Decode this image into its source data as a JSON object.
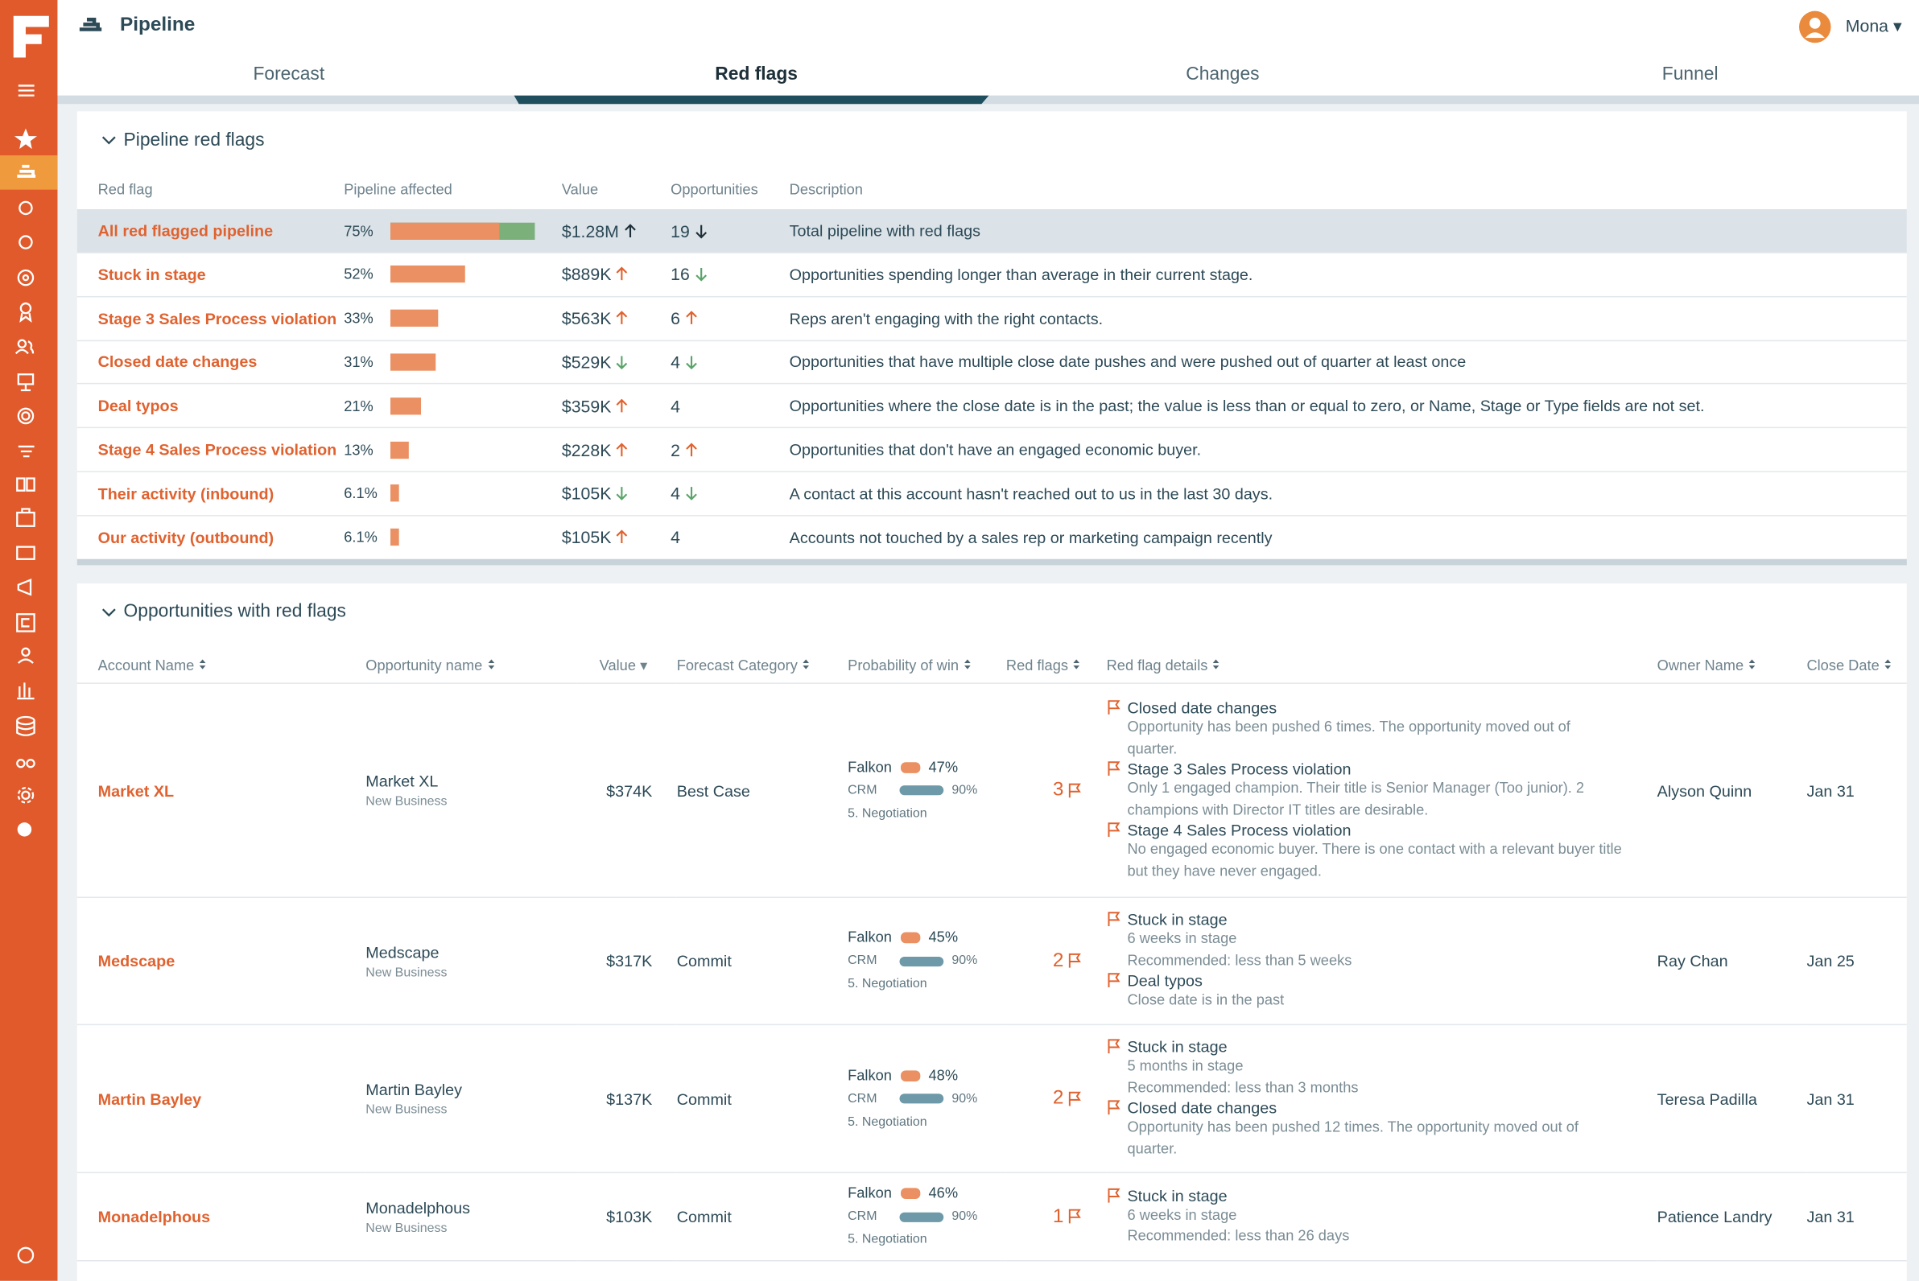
{
  "header": {
    "title": "Pipeline",
    "user": "Mona"
  },
  "tabs": {
    "items": [
      "Forecast",
      "Red flags",
      "Changes",
      "Funnel"
    ],
    "active": 1
  },
  "red_flags": {
    "title": "Pipeline red flags",
    "columns": [
      "Red flag",
      "Pipeline affected",
      "Value",
      "Opportunities",
      "Description"
    ],
    "rows": [
      {
        "name": "All red flagged pipeline",
        "pct": {
          "value": 75,
          "label": "75%"
        },
        "value": "$1.28M",
        "value_trend": "up",
        "opportunities": "19",
        "opportunities_trend": "down",
        "description": "Total pipeline with red flags",
        "highlighted": true
      },
      {
        "name": "Stuck in stage",
        "pct": {
          "value": 52,
          "label": "52%"
        },
        "value": "$889K",
        "value_trend": "up",
        "opportunities": "16",
        "opportunities_trend": "down",
        "description": "Opportunities spending longer than average in their current stage."
      },
      {
        "name": "Stage 3 Sales Process violation",
        "pct": {
          "value": 33,
          "label": "33%"
        },
        "value": "$563K",
        "value_trend": "up",
        "opportunities": "6",
        "opportunities_trend": "up",
        "description": "Reps aren't engaging with the right contacts."
      },
      {
        "name": "Closed date changes",
        "pct": {
          "value": 31,
          "label": "31%"
        },
        "value": "$529K",
        "value_trend": "down",
        "opportunities": "4",
        "opportunities_trend": "down",
        "description": "Opportunities that have multiple close date pushes and were pushed out of quarter at least once"
      },
      {
        "name": "Deal typos",
        "pct": {
          "value": 21,
          "label": "21%"
        },
        "value": "$359K",
        "value_trend": "up",
        "opportunities": "4",
        "description": "Opportunities where the close date is in the past; the value is less than or equal to zero, or Name, Stage or Type fields are not set."
      },
      {
        "name": "Stage 4 Sales Process violation",
        "pct": {
          "value": 13,
          "label": "13%"
        },
        "value": "$228K",
        "value_trend": "up",
        "opportunities": "2",
        "opportunities_trend": "up",
        "description": "Opportunities that don't have an engaged economic buyer."
      },
      {
        "name": "Their activity (inbound)",
        "pct": {
          "value": 6.1,
          "label": "6.1%"
        },
        "value": "$105K",
        "value_trend": "down",
        "opportunities": "4",
        "opportunities_trend": "down",
        "description": "A contact at this account hasn't reached out to us in the last 30 days."
      },
      {
        "name": "Our activity (outbound)",
        "pct": {
          "value": 6.1,
          "label": "6.1%"
        },
        "value": "$105K",
        "value_trend": "up",
        "opportunities": "4",
        "description": "Accounts not touched by a sales rep or marketing campaign recently"
      }
    ]
  },
  "opportunities": {
    "title": "Opportunities with red flags",
    "columns": [
      "Account Name",
      "Opportunity name",
      "Value",
      "Forecast Category",
      "Probability of win",
      "Red flags",
      "Red flag details",
      "Owner Name",
      "Close Date"
    ],
    "falkon_label": "Falkon",
    "crm_label": "CRM",
    "rows": [
      {
        "account": "Market XL",
        "opportunity": "Market XL",
        "type": "New Business",
        "value": "$374K",
        "forecast": "Best Case",
        "falkon": "47%",
        "crm": "90%",
        "stage": "5. Negotiation",
        "flags": "3",
        "details": [
          {
            "title": "Closed date changes",
            "text": "Opportunity has been pushed 6 times. The opportunity moved out of quarter."
          },
          {
            "title": "Stage 3 Sales Process violation",
            "text": "Only 1 engaged champion. Their title is Senior Manager (Too junior). 2 champions with Director IT titles are desirable."
          },
          {
            "title": "Stage 4 Sales Process violation",
            "text": "No engaged economic buyer. There is one contact with a relevant buyer title but they have never engaged."
          }
        ],
        "owner": "Alyson Quinn",
        "close": "Jan 31"
      },
      {
        "account": "Medscape",
        "opportunity": "Medscape",
        "type": "New Business",
        "value": "$317K",
        "forecast": "Commit",
        "falkon": "45%",
        "crm": "90%",
        "stage": "5. Negotiation",
        "flags": "2",
        "details": [
          {
            "title": "Stuck in stage",
            "text": "6 weeks in stage",
            "text2": "Recommended: less than 5 weeks"
          },
          {
            "title": "Deal typos",
            "text": "Close date is in the past"
          }
        ],
        "owner": "Ray Chan",
        "close": "Jan 25"
      },
      {
        "account": "Martin Bayley",
        "opportunity": "Martin Bayley",
        "type": "New Business",
        "value": "$137K",
        "forecast": "Commit",
        "falkon": "48%",
        "crm": "90%",
        "stage": "5. Negotiation",
        "flags": "2",
        "details": [
          {
            "title": "Stuck in stage",
            "text": "5 months in stage",
            "text2": "Recommended: less than 3 months"
          },
          {
            "title": "Closed date changes",
            "text": "Opportunity has been pushed 12 times. The opportunity moved out of quarter."
          }
        ],
        "owner": "Teresa Padilla",
        "close": "Jan 31"
      },
      {
        "account": "Monadelphous",
        "opportunity": "Monadelphous",
        "type": "New Business",
        "value": "$103K",
        "forecast": "Commit",
        "falkon": "46%",
        "crm": "90%",
        "stage": "5. Negotiation",
        "flags": "1",
        "details": [
          {
            "title": "Stuck in stage",
            "text": "6 weeks in stage",
            "text2": "Recommended: less than 26 days"
          }
        ],
        "owner": "Patience Landry",
        "close": "Jan 31"
      }
    ]
  }
}
